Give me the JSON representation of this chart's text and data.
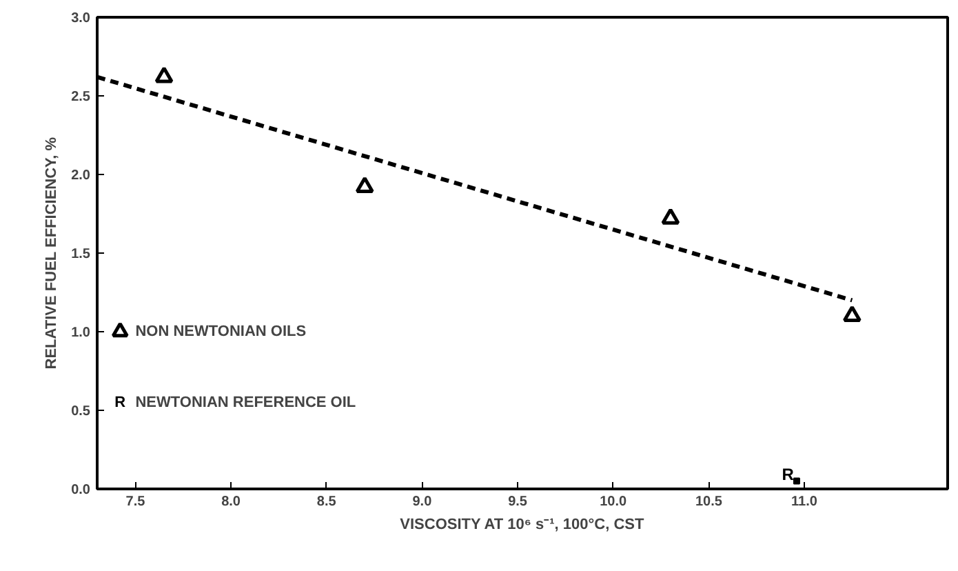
{
  "chart_data": {
    "type": "scatter",
    "xlabel": "VISCOSITY AT 10⁶ s⁻¹, 100°C, CST",
    "ylabel": "RELATIVE FUEL EFFICIENCY, %",
    "xlim": [
      7.3,
      11.75
    ],
    "xticks": [
      {
        "value": 7.5,
        "label": "7.5"
      },
      {
        "value": 8.0,
        "label": "8.0"
      },
      {
        "value": 8.5,
        "label": "8.5"
      },
      {
        "value": 9.0,
        "label": "9.0"
      },
      {
        "value": 9.5,
        "label": "9.5"
      },
      {
        "value": 10.0,
        "label": "10.0"
      },
      {
        "value": 10.5,
        "label": "10.5"
      },
      {
        "value": 11.0,
        "label": "11.0"
      }
    ],
    "ylim": [
      0,
      3.0
    ],
    "yticks": [
      {
        "value": 0,
        "label": "0.0"
      },
      {
        "value": 0.5,
        "label": "0.5"
      },
      {
        "value": 1.0,
        "label": "1.0"
      },
      {
        "value": 1.5,
        "label": "1.5"
      },
      {
        "value": 2.0,
        "label": "2.0"
      },
      {
        "value": 2.5,
        "label": "2.5"
      },
      {
        "value": 3.0,
        "label": "3.0"
      }
    ],
    "grid": false,
    "legend": "left",
    "series": [
      {
        "name": "NON NEWTONIAN OILS",
        "marker": "triangle",
        "color": "#000000",
        "x": [
          7.65,
          8.7,
          10.3,
          11.25
        ],
        "values": [
          2.62,
          1.92,
          1.72,
          1.1
        ]
      },
      {
        "name": "NEWTONIAN REFERENCE OIL",
        "marker": "square",
        "value_labels": [
          "R"
        ],
        "color": "#000000",
        "x": [
          10.96
        ],
        "values": [
          0.05
        ]
      },
      {
        "type": "line",
        "line_style": "dashed",
        "marker": "none",
        "color": "#000000",
        "x": [
          7.3,
          11.25
        ],
        "values": [
          2.62,
          1.2
        ]
      }
    ]
  }
}
